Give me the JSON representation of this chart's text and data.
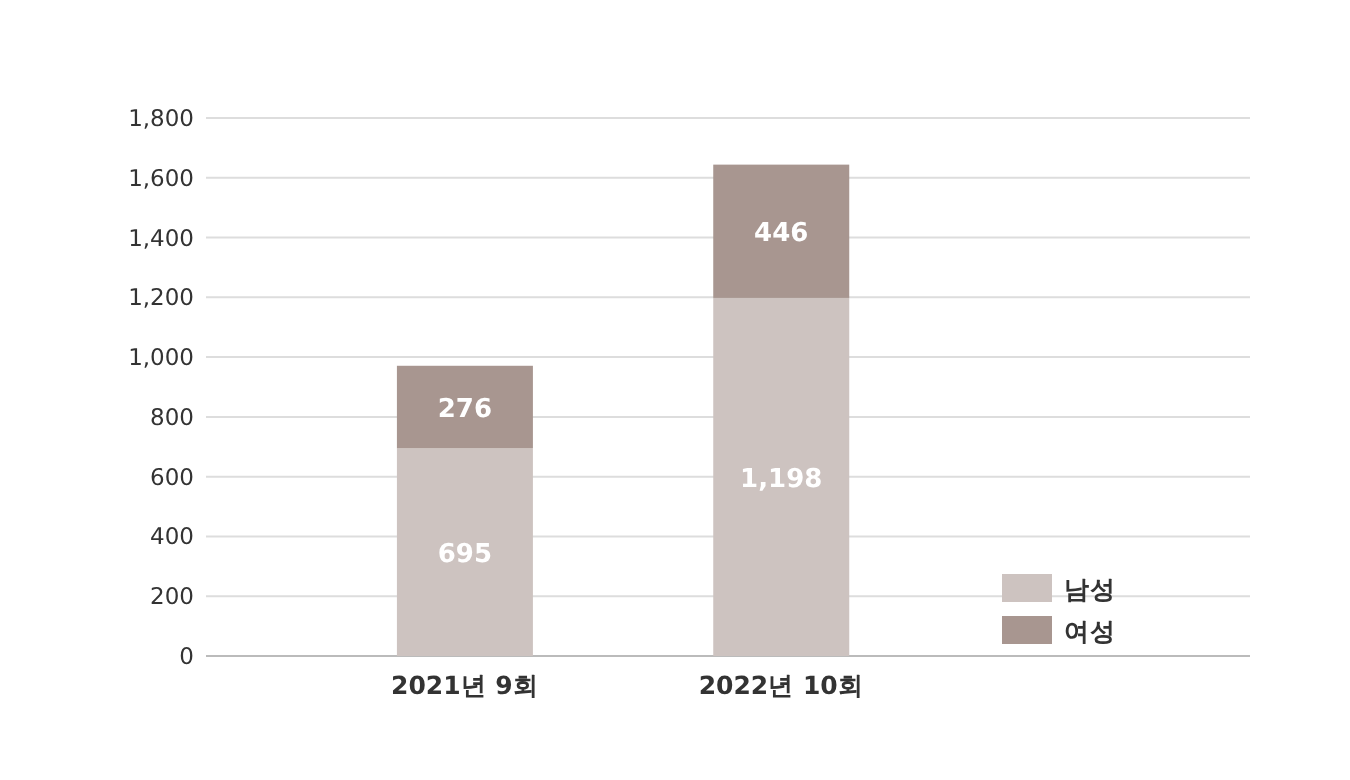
{
  "chart_data": {
    "type": "bar",
    "stacked": true,
    "categories": [
      "2021년 9회",
      "2022년 10회"
    ],
    "series": [
      {
        "name": "남성",
        "color": "#cdc3c0",
        "values": [
          695,
          1198
        ]
      },
      {
        "name": "여성",
        "color": "#a89690",
        "values": [
          276,
          446
        ]
      }
    ],
    "ylim": [
      0,
      1800
    ],
    "yticks": [
      0,
      {
        "value": 200,
        "label": "200"
      },
      {
        "value": 400,
        "label": "400"
      },
      {
        "value": 600,
        "label": "600"
      },
      {
        "value": 800,
        "label": "800"
      },
      {
        "value": 1000,
        "label": "1,000"
      },
      {
        "value": 1200,
        "label": "1,200"
      },
      {
        "value": 1400,
        "label": "1,400"
      },
      {
        "value": 1600,
        "label": "1,600"
      },
      {
        "value": 1800,
        "label": "1,800"
      }
    ],
    "value_labels": [
      [
        "695",
        "1,198"
      ],
      [
        "276",
        "446"
      ]
    ],
    "grid": "y",
    "legend": "bottom right"
  }
}
